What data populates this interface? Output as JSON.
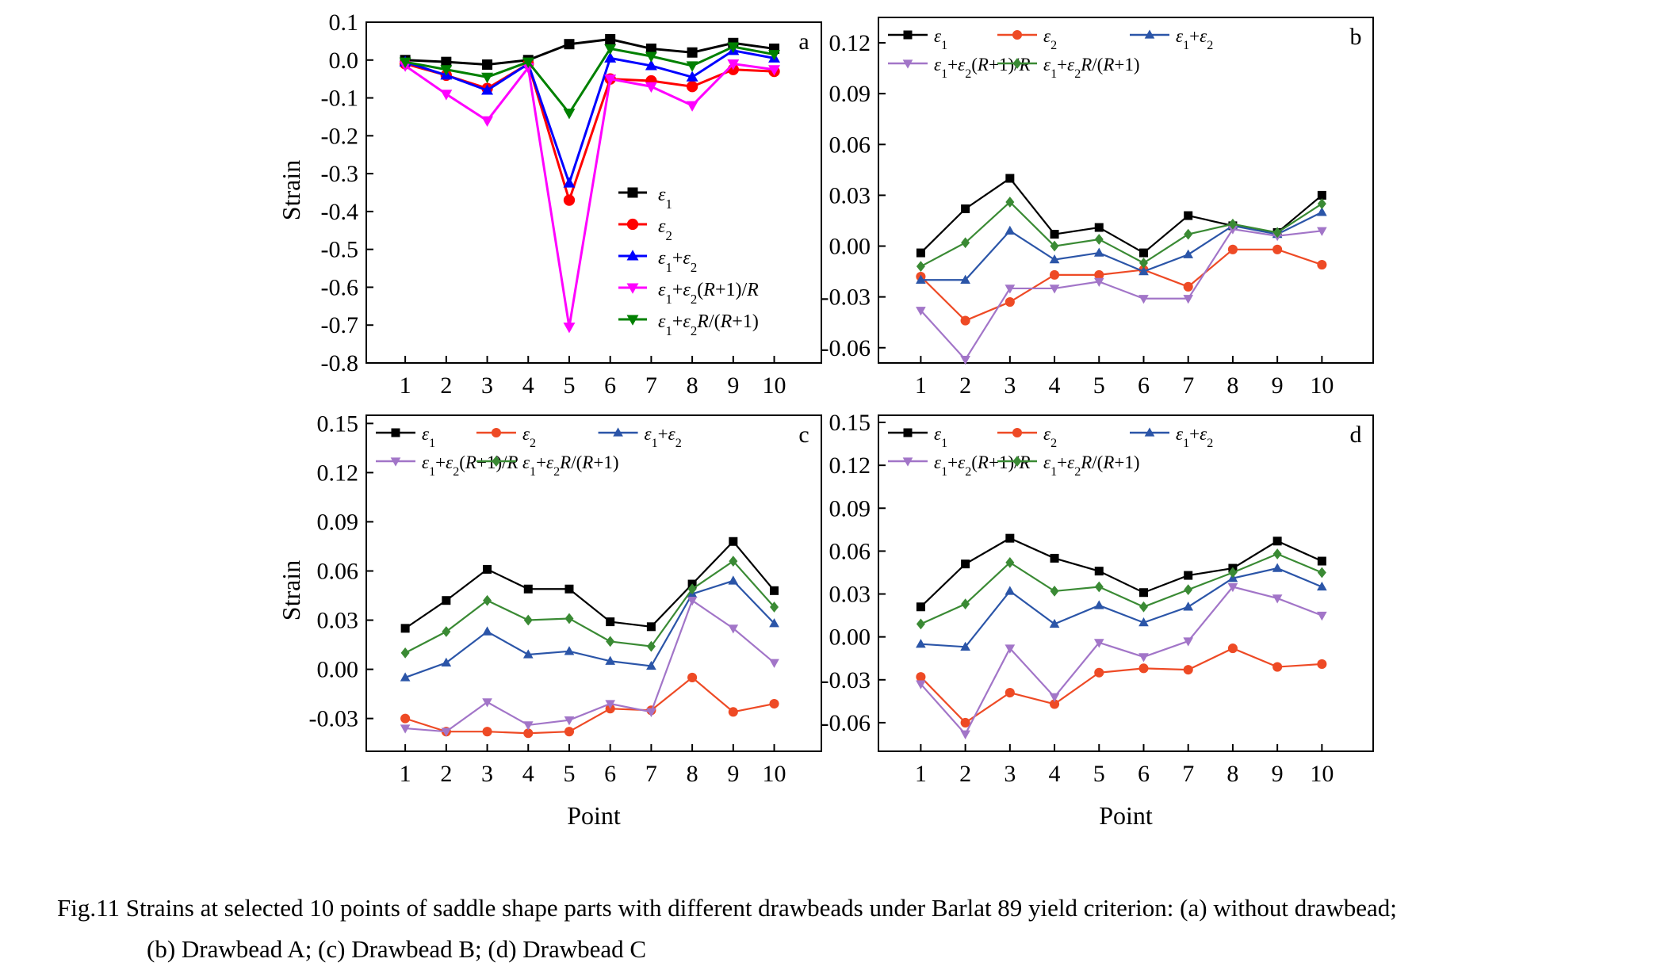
{
  "figure": {
    "caption": {
      "line1": "Fig.11    Strains at selected 10 points of saddle shape parts with different drawbeads under Barlat 89 yield criterion: (a) without drawbead;",
      "line2": "(b) Drawbead A; (c) Drawbead B; (d) Drawbead C"
    }
  },
  "colors": {
    "panel_a": [
      "#000000",
      "#ff0000",
      "#0000ff",
      "#ff00ff",
      "#008000"
    ],
    "panels_bcd": [
      "#000000",
      "#ee4a25",
      "#2b55a8",
      "#a275c8",
      "#3a8a34"
    ]
  },
  "chart_data": [
    {
      "type": "line",
      "panel_label": "a",
      "xlabel": "",
      "ylabel": "Strain",
      "x": [
        1,
        2,
        3,
        4,
        5,
        6,
        7,
        8,
        9,
        10
      ],
      "ylim": [
        -0.8,
        0.1
      ],
      "yticks": [
        "0.1",
        "0.0",
        "-0.1",
        "-0.2",
        "-0.3",
        "-0.4",
        "-0.5",
        "-0.6",
        "-0.7",
        "-0.8"
      ],
      "legend_position": "center-right",
      "series": [
        {
          "name": "ε1",
          "marker": "square",
          "values": [
            0.0,
            -0.005,
            -0.012,
            0.0,
            0.042,
            0.055,
            0.03,
            0.02,
            0.045,
            0.03
          ]
        },
        {
          "name": "ε2",
          "marker": "circle",
          "values": [
            -0.01,
            -0.04,
            -0.075,
            -0.01,
            -0.37,
            -0.05,
            -0.055,
            -0.07,
            -0.025,
            -0.03
          ]
        },
        {
          "name": "ε1+ε2",
          "marker": "triangle-up",
          "values": [
            -0.005,
            -0.04,
            -0.08,
            -0.01,
            -0.325,
            0.005,
            -0.015,
            -0.045,
            0.025,
            0.005
          ]
        },
        {
          "name": "ε1+ε2(R+1)/R",
          "marker": "triangle-down",
          "values": [
            -0.015,
            -0.09,
            -0.16,
            -0.02,
            -0.705,
            -0.05,
            -0.07,
            -0.12,
            -0.01,
            -0.025
          ]
        },
        {
          "name": "ε1+ε2R/(R+1)",
          "marker": "triangle-down",
          "values": [
            -0.005,
            -0.025,
            -0.045,
            -0.005,
            -0.14,
            0.03,
            0.01,
            -0.015,
            0.035,
            0.015
          ]
        }
      ]
    },
    {
      "type": "line",
      "panel_label": "b",
      "xlabel": "",
      "ylabel": "",
      "x": [
        1,
        2,
        3,
        4,
        5,
        6,
        7,
        8,
        9,
        10
      ],
      "ylim": [
        -0.069,
        0.135
      ],
      "yticks": [
        "0.12",
        "0.09",
        "0.06",
        "0.03",
        "0.00",
        "-0.03",
        "-0.06"
      ],
      "legend_position": "top",
      "series": [
        {
          "name": "ε1",
          "marker": "square",
          "values": [
            -0.004,
            0.022,
            0.04,
            0.007,
            0.011,
            -0.004,
            0.018,
            0.012,
            0.008,
            0.03
          ]
        },
        {
          "name": "ε2",
          "marker": "circle",
          "values": [
            -0.018,
            -0.044,
            -0.033,
            -0.017,
            -0.017,
            -0.014,
            -0.024,
            -0.002,
            -0.002,
            -0.011
          ]
        },
        {
          "name": "ε1+ε2",
          "marker": "triangle-up",
          "values": [
            -0.02,
            -0.02,
            0.009,
            -0.008,
            -0.004,
            -0.015,
            -0.005,
            0.012,
            0.007,
            0.02
          ]
        },
        {
          "name": "ε1+ε2(R+1)/R",
          "marker": "triangle-down",
          "values": [
            -0.038,
            -0.067,
            -0.025,
            -0.025,
            -0.021,
            -0.031,
            -0.031,
            0.01,
            0.006,
            0.009
          ]
        },
        {
          "name": "ε1+ε2R/(R+1)",
          "marker": "diamond",
          "values": [
            -0.012,
            0.002,
            0.026,
            0.0,
            0.004,
            -0.01,
            0.007,
            0.013,
            0.008,
            0.025
          ]
        }
      ]
    },
    {
      "type": "line",
      "panel_label": "c",
      "xlabel": "Point",
      "ylabel": "Strain",
      "x": [
        1,
        2,
        3,
        4,
        5,
        6,
        7,
        8,
        9,
        10
      ],
      "ylim": [
        -0.05,
        0.155
      ],
      "yticks": [
        "0.15",
        "0.12",
        "0.09",
        "0.06",
        "0.03",
        "0.00",
        "-0.03"
      ],
      "legend_position": "top",
      "series": [
        {
          "name": "ε1",
          "marker": "square",
          "values": [
            0.025,
            0.042,
            0.061,
            0.049,
            0.049,
            0.029,
            0.026,
            0.052,
            0.078,
            0.048
          ]
        },
        {
          "name": "ε2",
          "marker": "circle",
          "values": [
            -0.03,
            -0.038,
            -0.038,
            -0.039,
            -0.038,
            -0.024,
            -0.025,
            -0.005,
            -0.026,
            -0.021
          ]
        },
        {
          "name": "ε1+ε2",
          "marker": "triangle-up",
          "values": [
            -0.005,
            0.004,
            0.023,
            0.009,
            0.011,
            0.005,
            0.002,
            0.046,
            0.054,
            0.028
          ]
        },
        {
          "name": "ε1+ε2(R+1)/R",
          "marker": "triangle-down",
          "values": [
            -0.036,
            -0.038,
            -0.02,
            -0.034,
            -0.031,
            -0.021,
            -0.026,
            0.042,
            0.025,
            0.004
          ]
        },
        {
          "name": "ε1+ε2R/(R+1)",
          "marker": "diamond",
          "values": [
            0.01,
            0.023,
            0.042,
            0.03,
            0.031,
            0.017,
            0.014,
            0.049,
            0.066,
            0.038
          ]
        }
      ]
    },
    {
      "type": "line",
      "panel_label": "d",
      "xlabel": "Point",
      "ylabel": "",
      "x": [
        1,
        2,
        3,
        4,
        5,
        6,
        7,
        8,
        9,
        10
      ],
      "ylim": [
        -0.08,
        0.155
      ],
      "yticks": [
        "0.15",
        "0.12",
        "0.09",
        "0.06",
        "0.03",
        "0.00",
        "-0.03",
        "-0.06"
      ],
      "legend_position": "top",
      "series": [
        {
          "name": "ε1",
          "marker": "square",
          "values": [
            0.021,
            0.051,
            0.069,
            0.055,
            0.046,
            0.031,
            0.043,
            0.048,
            0.067,
            0.053
          ]
        },
        {
          "name": "ε2",
          "marker": "circle",
          "values": [
            -0.028,
            -0.06,
            -0.039,
            -0.047,
            -0.025,
            -0.022,
            -0.023,
            -0.008,
            -0.021,
            -0.019
          ]
        },
        {
          "name": "ε1+ε2",
          "marker": "triangle-up",
          "values": [
            -0.005,
            -0.007,
            0.032,
            0.009,
            0.022,
            0.01,
            0.021,
            0.041,
            0.048,
            0.035
          ]
        },
        {
          "name": "ε1+ε2(R+1)/R",
          "marker": "triangle-down",
          "values": [
            -0.033,
            -0.068,
            -0.008,
            -0.042,
            -0.004,
            -0.014,
            -0.003,
            0.035,
            0.027,
            0.015
          ]
        },
        {
          "name": "ε1+ε2R/(R+1)",
          "marker": "diamond",
          "values": [
            0.009,
            0.023,
            0.052,
            0.032,
            0.035,
            0.021,
            0.033,
            0.045,
            0.058,
            0.045
          ]
        }
      ]
    }
  ]
}
